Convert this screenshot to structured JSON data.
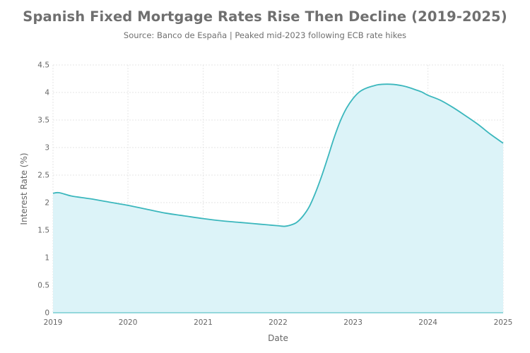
{
  "title": "Spanish Fixed Mortgage Rates Rise Then Decline (2019-2025)",
  "subtitle": "Source: Banco de España | Peaked mid-2023 following ECB rate hikes",
  "chart_data": {
    "type": "area",
    "xlabel": "Date",
    "ylabel": "Interest Rate (%)",
    "xlim": [
      "2019-01-01",
      "2025-01-01"
    ],
    "ylim": [
      0,
      4.5
    ],
    "x_ticks": [
      "2019",
      "2020",
      "2021",
      "2022",
      "2023",
      "2024",
      "2025"
    ],
    "y_ticks": [
      0,
      0.5,
      1,
      1.5,
      2,
      2.5,
      3,
      3.5,
      4,
      4.5
    ],
    "y_tick_labels": [
      "0",
      "0.5",
      "1",
      "1.5",
      "2",
      "2.5",
      "3",
      "3.5",
      "4",
      "4.5"
    ],
    "grid": true,
    "line_color": "#3bb7bd",
    "fill_color": "#dcf3f8",
    "series": [
      {
        "x": [
          "2019-01",
          "2019-02",
          "2019-04",
          "2019-07",
          "2019-10",
          "2020-01",
          "2020-04",
          "2020-07",
          "2020-10",
          "2021-01",
          "2021-04",
          "2021-07",
          "2021-10",
          "2022-01",
          "2022-02",
          "2022-03",
          "2022-04",
          "2022-05",
          "2022-06",
          "2022-07",
          "2022-08",
          "2022-09",
          "2022-10",
          "2022-11",
          "2022-12",
          "2023-01",
          "2023-02",
          "2023-03",
          "2023-04",
          "2023-05",
          "2023-06",
          "2023-07",
          "2023-08",
          "2023-09",
          "2023-10",
          "2023-11",
          "2023-12",
          "2024-01",
          "2024-03",
          "2024-05",
          "2024-07",
          "2024-09",
          "2024-11",
          "2025-01"
        ],
        "values": [
          2.17,
          2.18,
          2.12,
          2.07,
          2.01,
          1.95,
          1.88,
          1.81,
          1.76,
          1.71,
          1.67,
          1.64,
          1.61,
          1.58,
          1.57,
          1.59,
          1.64,
          1.75,
          1.92,
          2.17,
          2.48,
          2.83,
          3.18,
          3.49,
          3.72,
          3.89,
          4.01,
          4.07,
          4.11,
          4.14,
          4.15,
          4.15,
          4.14,
          4.12,
          4.09,
          4.05,
          4.01,
          3.95,
          3.86,
          3.73,
          3.58,
          3.42,
          3.24,
          3.08
        ]
      }
    ]
  }
}
